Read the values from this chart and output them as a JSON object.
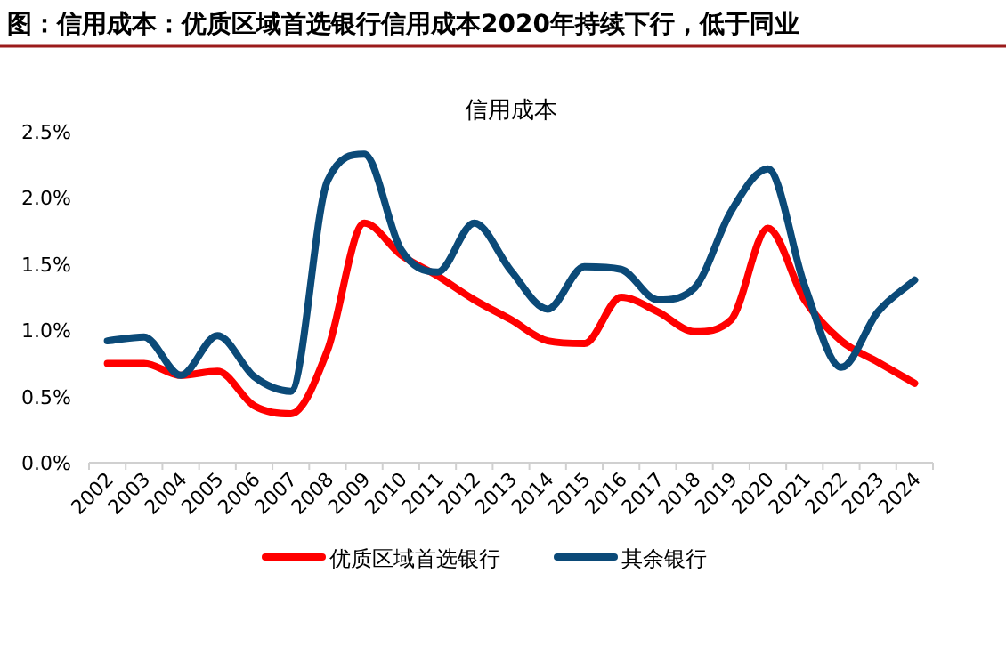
{
  "chart_data": {
    "type": "line",
    "title": "图：信用成本：优质区域首选银行信用成本2020年持续下行，低于同业",
    "subtitle": "信用成本",
    "categories": [
      "2002",
      "2003",
      "2004",
      "2005",
      "2006",
      "2007",
      "2008",
      "2009",
      "2010",
      "2011",
      "2012",
      "2013",
      "2014",
      "2015",
      "2016",
      "2017",
      "2018",
      "2019",
      "2020",
      "2021",
      "2022",
      "2023",
      "2024"
    ],
    "series": [
      {
        "name": "优质区域首选银行",
        "color": "#ff0000",
        "values": [
          0.75,
          0.75,
          0.66,
          0.69,
          0.43,
          0.37,
          0.85,
          1.81,
          1.57,
          1.41,
          1.23,
          1.08,
          0.92,
          0.9,
          1.25,
          1.14,
          0.99,
          1.08,
          1.77,
          1.23,
          0.92,
          0.76,
          0.6
        ]
      },
      {
        "name": "其余银行",
        "color": "#0b4a78",
        "values": [
          0.92,
          0.95,
          0.66,
          0.96,
          0.65,
          0.54,
          2.13,
          2.33,
          1.61,
          1.44,
          1.81,
          1.45,
          1.16,
          1.48,
          1.46,
          1.23,
          1.32,
          1.9,
          2.22,
          1.34,
          0.72,
          1.14,
          1.38
        ]
      }
    ],
    "ylim": [
      0,
      2.5
    ],
    "yticks": [
      {
        "value": 0,
        "label": "0.0%"
      },
      {
        "value": 0.5,
        "label": "0.5%"
      },
      {
        "value": 1,
        "label": "1.0%"
      },
      {
        "value": 1.5,
        "label": "1.5%"
      },
      {
        "value": 2,
        "label": "2.0%"
      },
      {
        "value": 2.5,
        "label": "2.5%"
      }
    ],
    "grid": false,
    "legend": "bottom"
  }
}
